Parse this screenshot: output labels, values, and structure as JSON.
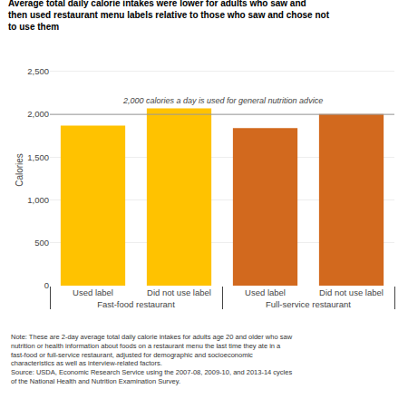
{
  "chart_data": {
    "type": "bar",
    "title": "Average total daily calorie intakes were lower for adults who saw and then used restaurant menu labels relative to those who saw and chose not to use them",
    "categories": [
      "Used label",
      "Did not use label",
      "Used label",
      "Did not use label"
    ],
    "groups": [
      "Fast-food restaurant",
      "Fast-food restaurant",
      "Full-service restaurant",
      "Full-service restaurant"
    ],
    "values": [
      1870,
      2070,
      1840,
      2005
    ],
    "colors": [
      "#FFC200",
      "#FFC200",
      "#D2691E",
      "#D2691E"
    ],
    "ylabel": "Calories",
    "ylim": [
      0,
      2700
    ],
    "yticks": [
      0,
      500,
      {
        "value": 1000,
        "label": "1,000"
      },
      {
        "value": 1500,
        "label": "1,500"
      },
      {
        "value": 2000,
        "label": "2,000"
      },
      {
        "value": 2500,
        "label": "2,500"
      }
    ],
    "grid": true,
    "reference_line": 2000,
    "reference_label": "2,000 calories a day is used for general nutrition advice",
    "note": "Note: These are 2-day average total daily calorie intakes for adults age 20 and older who saw\nnutrition or health information about foods on a restaurant menu the last time they ate in a\nfast-food or full-service restaurant, adjusted for demographic and socioeconomic\ncharacteristics as well as interview-related factors.\nSource: USDA, Economic Research Service using the 2007-08, 2009-10, and 2013-14 cycles\nof the National Health and Nutrition Examination Survey."
  }
}
